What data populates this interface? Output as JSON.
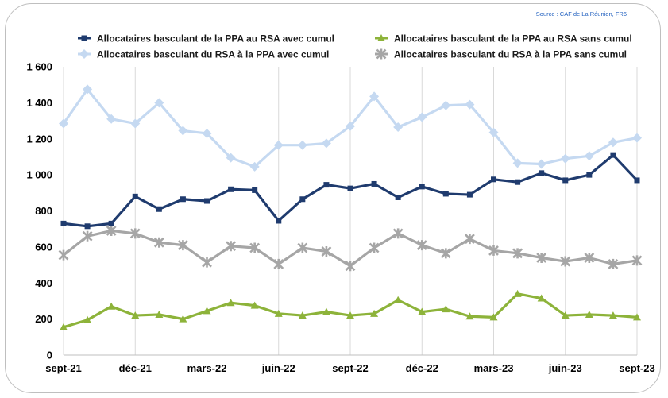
{
  "source": "Source : CAF de La Réunion, FR6",
  "chart_data": {
    "type": "line",
    "ylim": [
      0,
      1600
    ],
    "yticks": [
      "0",
      "200",
      "400",
      "600",
      "800",
      "1 000",
      "1 200",
      "1 400",
      "1 600"
    ],
    "xtick_labels": [
      "sept-21",
      "déc-21",
      "mars-22",
      "juin-22",
      "sept-22",
      "déc-22",
      "mars-23",
      "juin-23",
      "sept-23"
    ],
    "categories": [
      "sept-21",
      "oct-21",
      "nov-21",
      "déc-21",
      "janv-22",
      "févr-22",
      "mars-22",
      "avr-22",
      "mai-22",
      "juin-22",
      "juil-22",
      "août-22",
      "sept-22",
      "oct-22",
      "nov-22",
      "déc-22",
      "janv-23",
      "févr-23",
      "mars-23",
      "avr-23",
      "mai-23",
      "juin-23",
      "juil-23",
      "août-23",
      "sept-23"
    ],
    "grid": "vertical",
    "legend_position": "top",
    "series": [
      {
        "name": "Allocataires basculant de la PPA au RSA avec cumul",
        "color": "#1f3b6e",
        "marker": "square",
        "values": [
          730,
          715,
          730,
          880,
          810,
          865,
          855,
          920,
          915,
          745,
          865,
          945,
          925,
          950,
          875,
          935,
          895,
          890,
          975,
          960,
          1010,
          970,
          1000,
          1110,
          970
        ]
      },
      {
        "name": "Allocataires basculant de la PPA au RSA sans cumul",
        "color": "#8db33a",
        "marker": "triangle",
        "values": [
          155,
          195,
          270,
          220,
          225,
          200,
          245,
          290,
          275,
          230,
          220,
          240,
          220,
          230,
          305,
          240,
          255,
          215,
          210,
          340,
          315,
          220,
          225,
          220,
          210
        ]
      },
      {
        "name": "Allocataires basculant du RSA à la PPA avec cumul",
        "color": "#c5d9f1",
        "marker": "diamond",
        "values": [
          1285,
          1475,
          1310,
          1285,
          1400,
          1245,
          1230,
          1095,
          1045,
          1165,
          1165,
          1175,
          1270,
          1435,
          1265,
          1320,
          1385,
          1390,
          1235,
          1065,
          1060,
          1090,
          1105,
          1180,
          1205
        ]
      },
      {
        "name": "Allocataires basculant du RSA à la PPA sans cumul",
        "color": "#a6a6a6",
        "marker": "star",
        "values": [
          555,
          660,
          690,
          675,
          625,
          610,
          515,
          605,
          595,
          505,
          595,
          575,
          495,
          595,
          675,
          610,
          565,
          645,
          580,
          565,
          540,
          520,
          540,
          505,
          525
        ]
      }
    ]
  }
}
